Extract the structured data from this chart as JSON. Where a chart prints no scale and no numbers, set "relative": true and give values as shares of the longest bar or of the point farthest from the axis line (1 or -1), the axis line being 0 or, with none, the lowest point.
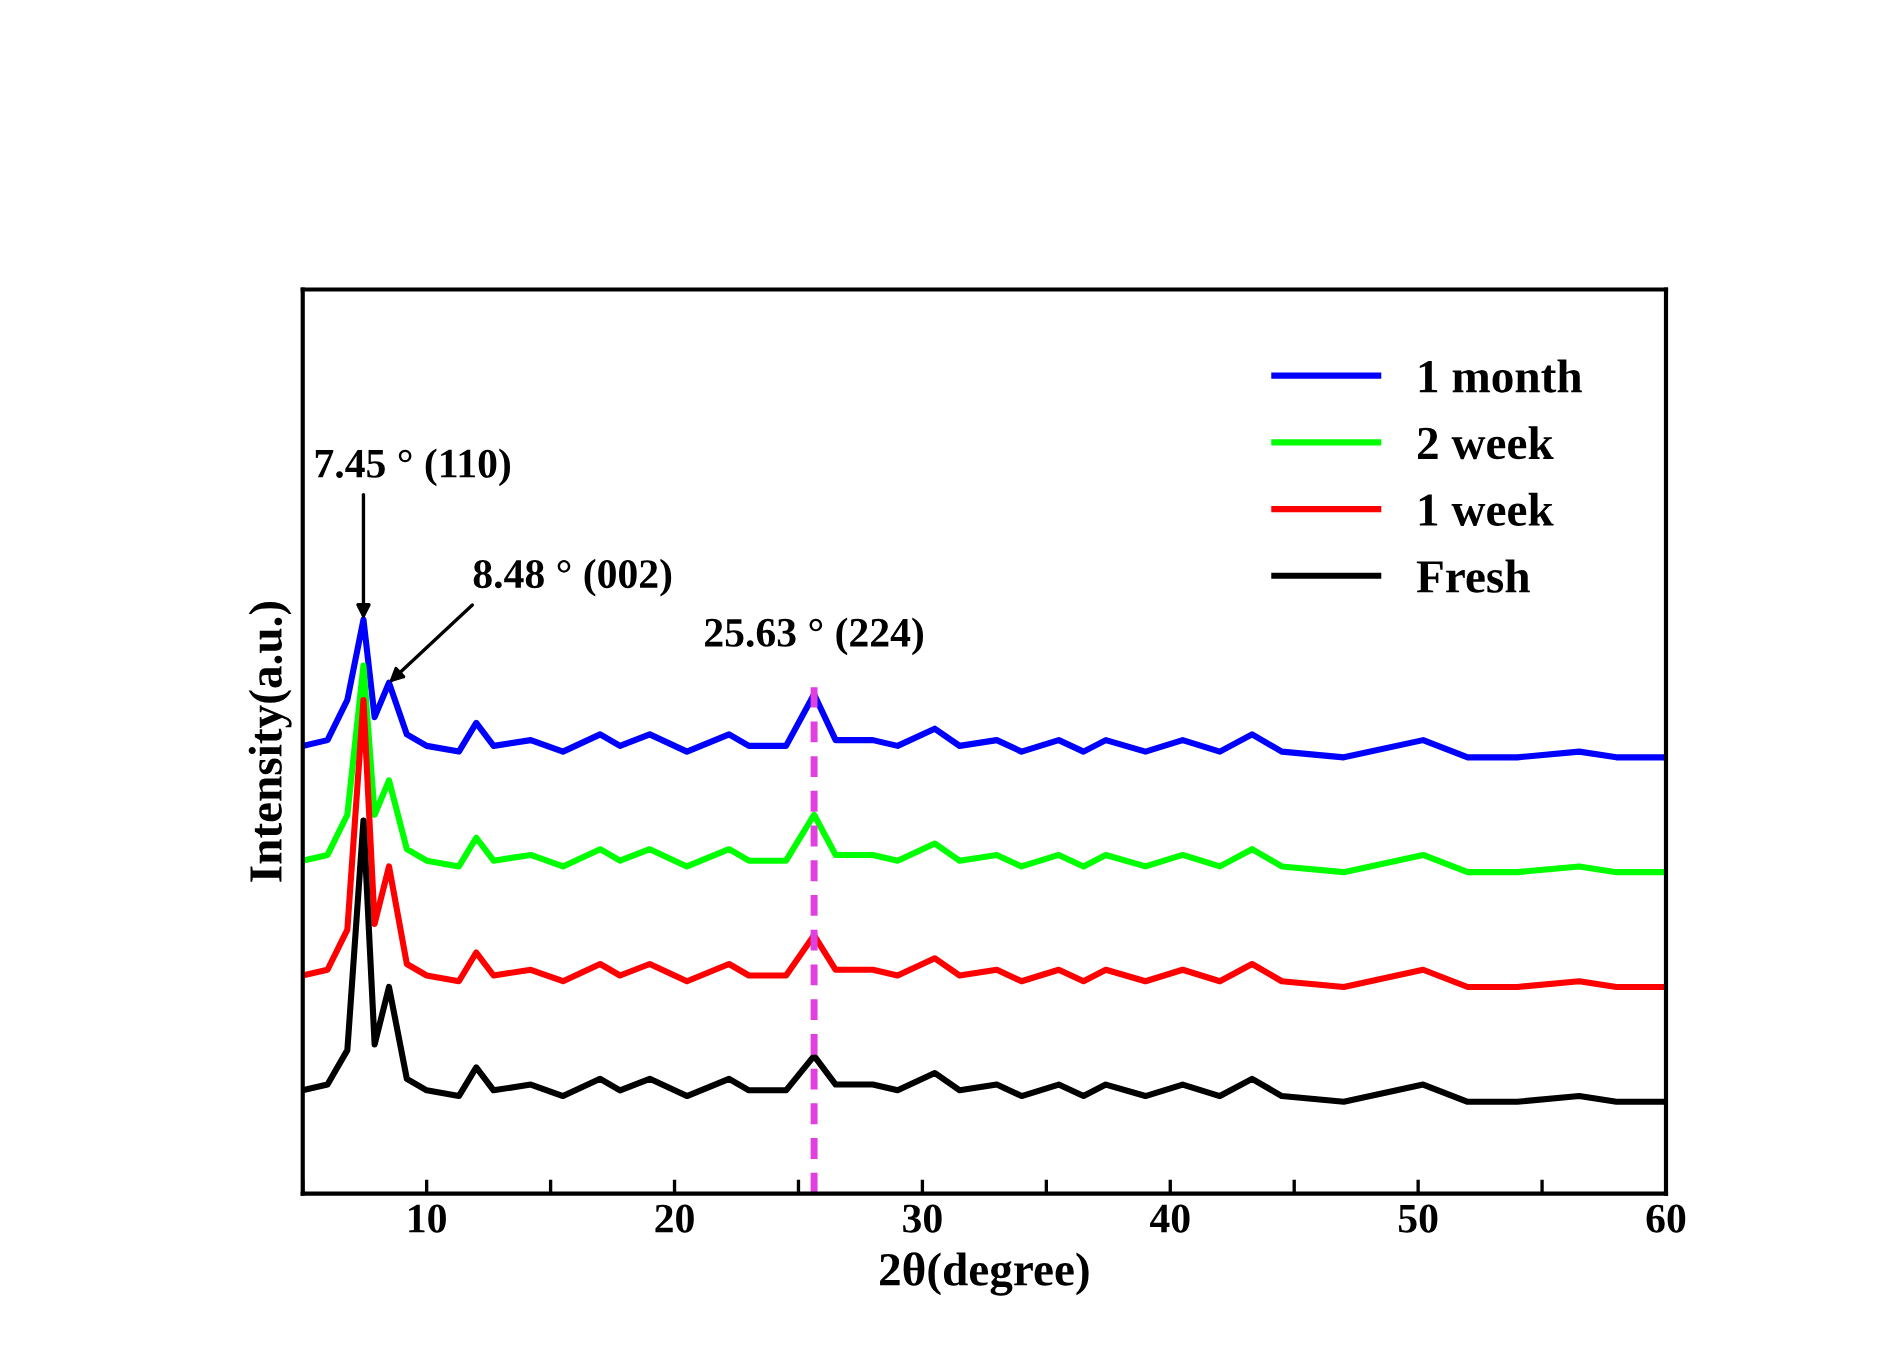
{
  "chart_data": {
    "type": "line",
    "relative": true,
    "xlabel": "2θ(degree)",
    "ylabel": "Intensity(a.u.)",
    "x": [
      5,
      6,
      6.8,
      7.45,
      7.9,
      8.48,
      9.2,
      10,
      11.3,
      12,
      12.7,
      14.2,
      15.5,
      17,
      17.8,
      19,
      20.5,
      22.2,
      23,
      24.5,
      25.63,
      26.5,
      28,
      29,
      30.5,
      31.5,
      33,
      34,
      35.5,
      36.5,
      37.4,
      39,
      40.5,
      42,
      43.3,
      44.5,
      47,
      50.2,
      52,
      54,
      56.5,
      58,
      60
    ],
    "xlim": [
      5,
      60
    ],
    "xticks": [
      {
        "value": 5,
        "label": null
      },
      10,
      {
        "value": 15,
        "label": null
      },
      20,
      {
        "value": 25,
        "label": null
      },
      30,
      {
        "value": 35,
        "label": null
      },
      40,
      {
        "value": 45,
        "label": null
      },
      50,
      {
        "value": 55,
        "label": null
      },
      60
    ],
    "series": [
      {
        "name": "1 month",
        "color": "#0000ff",
        "values": [
          0.78,
          0.79,
          0.86,
          1.0,
          0.83,
          0.89,
          0.8,
          0.78,
          0.77,
          0.82,
          0.78,
          0.79,
          0.77,
          0.8,
          0.78,
          0.8,
          0.77,
          0.8,
          0.78,
          0.78,
          0.87,
          0.79,
          0.79,
          0.78,
          0.81,
          0.78,
          0.79,
          0.77,
          0.79,
          0.77,
          0.79,
          0.77,
          0.79,
          0.77,
          0.8,
          0.77,
          0.76,
          0.79,
          0.76,
          0.76,
          0.77,
          0.76,
          0.76
        ]
      },
      {
        "name": "2 week",
        "color": "#00ff00",
        "values": [
          0.58,
          0.59,
          0.66,
          0.92,
          0.66,
          0.72,
          0.6,
          0.58,
          0.57,
          0.62,
          0.58,
          0.59,
          0.57,
          0.6,
          0.58,
          0.6,
          0.57,
          0.6,
          0.58,
          0.58,
          0.66,
          0.59,
          0.59,
          0.58,
          0.61,
          0.58,
          0.59,
          0.57,
          0.59,
          0.57,
          0.59,
          0.57,
          0.59,
          0.57,
          0.6,
          0.57,
          0.56,
          0.59,
          0.56,
          0.56,
          0.57,
          0.56,
          0.56
        ]
      },
      {
        "name": "1 week",
        "color": "#ff0000",
        "values": [
          0.38,
          0.39,
          0.46,
          0.86,
          0.47,
          0.57,
          0.4,
          0.38,
          0.37,
          0.42,
          0.38,
          0.39,
          0.37,
          0.4,
          0.38,
          0.4,
          0.37,
          0.4,
          0.38,
          0.38,
          0.45,
          0.39,
          0.39,
          0.38,
          0.41,
          0.38,
          0.39,
          0.37,
          0.39,
          0.37,
          0.39,
          0.37,
          0.39,
          0.37,
          0.4,
          0.37,
          0.36,
          0.39,
          0.36,
          0.36,
          0.37,
          0.36,
          0.36
        ]
      },
      {
        "name": "Fresh",
        "color": "#000000",
        "values": [
          0.18,
          0.19,
          0.25,
          0.65,
          0.26,
          0.36,
          0.2,
          0.18,
          0.17,
          0.22,
          0.18,
          0.19,
          0.17,
          0.2,
          0.18,
          0.2,
          0.17,
          0.2,
          0.18,
          0.18,
          0.24,
          0.19,
          0.19,
          0.18,
          0.21,
          0.18,
          0.19,
          0.17,
          0.19,
          0.17,
          0.19,
          0.17,
          0.19,
          0.17,
          0.2,
          0.17,
          0.16,
          0.19,
          0.16,
          0.16,
          0.17,
          0.16,
          0.16
        ]
      }
    ],
    "ref_lines": [
      {
        "axis": "x",
        "value": 25.63,
        "color": "#e040e0",
        "line_style": "dashed"
      }
    ],
    "annotations": [
      {
        "text": "7.45 ° (110)",
        "x": 7.45,
        "y": 1.0
      },
      {
        "text": "8.48 ° (002)",
        "x": 8.48,
        "y": 0.89
      },
      {
        "text": "25.63 ° (224)",
        "x": 25.63,
        "y": 0.87
      }
    ],
    "legend": "top right",
    "grid": false
  }
}
